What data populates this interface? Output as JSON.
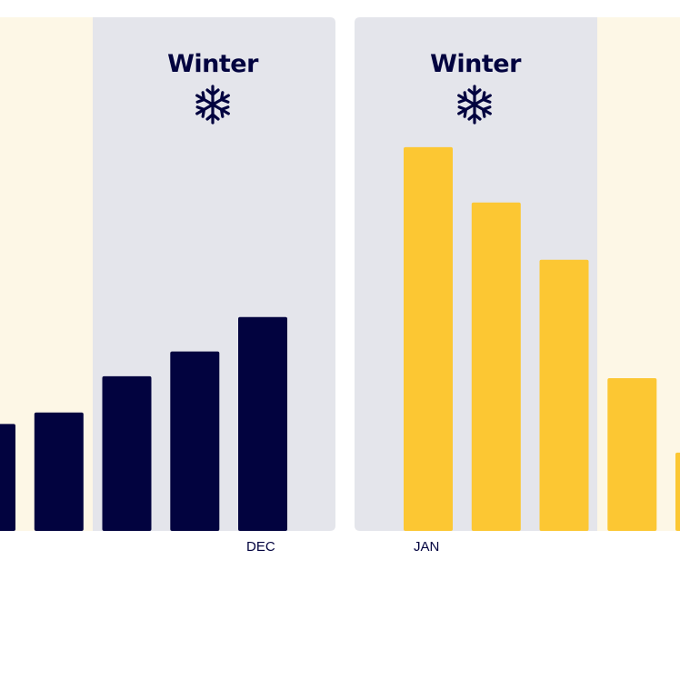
{
  "chart_data": [
    {
      "type": "bar",
      "panel": "left",
      "color": "#02033f",
      "season": "Winter",
      "season_icon": "snowflake-icon",
      "ylim": [
        0,
        100
      ],
      "month_label": "DEC",
      "values": [
        28,
        31,
        40.5,
        47,
        56
      ]
    },
    {
      "type": "bar",
      "panel": "right",
      "color": "#fcc733",
      "season": "Winter",
      "season_icon": "snowflake-icon",
      "ylim": [
        0,
        100
      ],
      "month_label": "JAN",
      "values": [
        100.5,
        86,
        71,
        40,
        20.5
      ]
    }
  ],
  "colors": {
    "winter_background": "#e4e5eb",
    "summer_background": "#fdf7e6",
    "navy": "#02033f",
    "yellow": "#fcc733"
  }
}
